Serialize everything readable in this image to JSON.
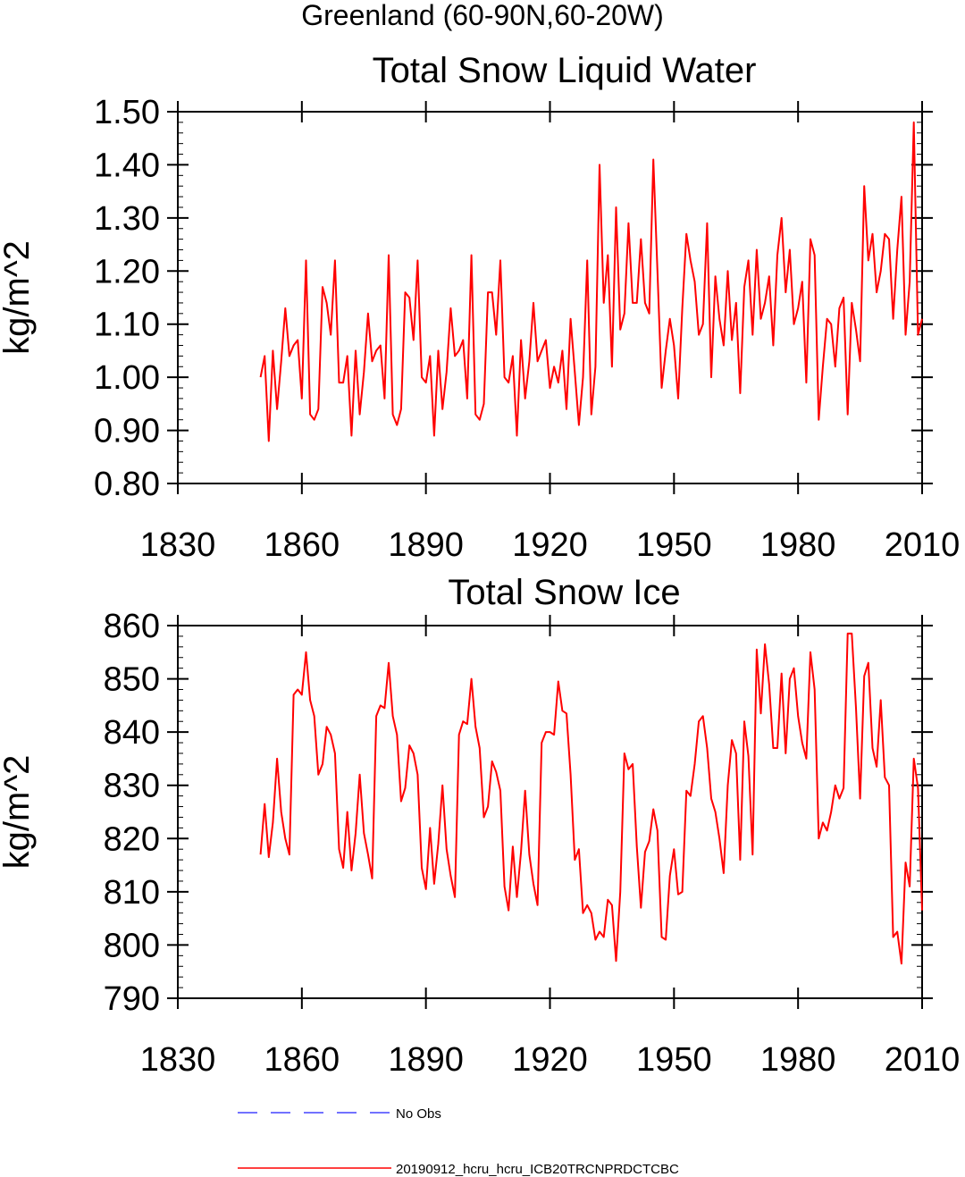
{
  "page_title": "Greenland (60-90N,60-20W)",
  "colors": {
    "model": "#ff0000",
    "obs": "#4444ff",
    "axis": "#000000"
  },
  "legend": {
    "items": [
      {
        "label": "No Obs",
        "style": "dashed",
        "color": "#4444ff"
      },
      {
        "label": "20190912_hcru_hcru_ICB20TRCNPRDCTCBC",
        "style": "solid",
        "color": "#ff0000"
      }
    ]
  },
  "chart_data": [
    {
      "type": "line",
      "title": "Total Snow Liquid Water",
      "xlabel": "",
      "ylabel": "kg/m^2",
      "xlim": [
        1830,
        2010
      ],
      "ylim": [
        0.8,
        1.5
      ],
      "xticks": [
        1830,
        1860,
        1890,
        1920,
        1950,
        1980,
        2010
      ],
      "xtick_labels": [
        "1830",
        "1860",
        "1890",
        "1920",
        "1950",
        "1980",
        "2010"
      ],
      "yticks": [
        0.8,
        0.9,
        1.0,
        1.1,
        1.2,
        1.3,
        1.4,
        1.5
      ],
      "ytick_labels": [
        "0.80",
        "0.90",
        "1.00",
        "1.10",
        "1.20",
        "1.30",
        "1.40",
        "1.50"
      ],
      "series": [
        {
          "name": "20190912_hcru_hcru_ICB20TRCNPRDCTCBC",
          "x_start": 1850,
          "x_step": 1,
          "values": [
            1.0,
            1.04,
            0.88,
            1.05,
            0.94,
            1.03,
            1.13,
            1.04,
            1.06,
            1.07,
            0.96,
            1.22,
            0.93,
            0.92,
            0.94,
            1.17,
            1.14,
            1.08,
            1.22,
            0.99,
            0.99,
            1.04,
            0.89,
            1.05,
            0.93,
            1.01,
            1.12,
            1.03,
            1.05,
            1.06,
            0.96,
            1.23,
            0.93,
            0.91,
            0.94,
            1.16,
            1.15,
            1.07,
            1.22,
            1.0,
            0.99,
            1.04,
            0.89,
            1.05,
            0.94,
            1.01,
            1.13,
            1.04,
            1.05,
            1.07,
            0.96,
            1.23,
            0.93,
            0.92,
            0.95,
            1.16,
            1.16,
            1.08,
            1.22,
            1.0,
            0.99,
            1.04,
            0.89,
            1.07,
            0.96,
            1.03,
            1.14,
            1.03,
            1.05,
            1.07,
            0.98,
            1.02,
            0.99,
            1.05,
            0.94,
            1.11,
            1.01,
            0.91,
            1.0,
            1.22,
            0.93,
            1.02,
            1.4,
            1.14,
            1.23,
            1.02,
            1.32,
            1.09,
            1.12,
            1.29,
            1.14,
            1.14,
            1.26,
            1.14,
            1.12,
            1.41,
            1.2,
            0.98,
            1.05,
            1.11,
            1.06,
            0.96,
            1.13,
            1.27,
            1.22,
            1.18,
            1.08,
            1.1,
            1.29,
            1.0,
            1.19,
            1.11,
            1.06,
            1.2,
            1.07,
            1.14,
            0.97,
            1.17,
            1.22,
            1.08,
            1.24,
            1.11,
            1.14,
            1.19,
            1.06,
            1.23,
            1.3,
            1.16,
            1.24,
            1.1,
            1.13,
            1.18,
            0.99,
            1.26,
            1.23,
            0.92,
            1.02,
            1.11,
            1.1,
            1.02,
            1.13,
            1.15,
            0.93,
            1.14,
            1.09,
            1.03,
            1.36,
            1.22,
            1.27,
            1.16,
            1.2,
            1.27,
            1.26,
            1.11,
            1.24,
            1.34,
            1.08,
            1.18,
            1.48,
            1.08,
            1.11
          ]
        }
      ]
    },
    {
      "type": "line",
      "title": "Total Snow Ice",
      "xlabel": "",
      "ylabel": "kg/m^2",
      "xlim": [
        1830,
        2010
      ],
      "ylim": [
        790,
        860
      ],
      "xticks": [
        1830,
        1860,
        1890,
        1920,
        1950,
        1980,
        2010
      ],
      "xtick_labels": [
        "1830",
        "1860",
        "1890",
        "1920",
        "1950",
        "1980",
        "2010"
      ],
      "yticks": [
        790,
        800,
        810,
        820,
        830,
        840,
        850,
        860
      ],
      "ytick_labels": [
        "790",
        "800",
        "810",
        "820",
        "830",
        "840",
        "850",
        "860"
      ],
      "series": [
        {
          "name": "20190912_hcru_hcru_ICB20TRCNPRDCTCBC",
          "x_start": 1850,
          "x_step": 1,
          "values": [
            817,
            826.5,
            816.5,
            823,
            835,
            825,
            820,
            817,
            847,
            848,
            847,
            855,
            846,
            843,
            832,
            834,
            841,
            839.5,
            836,
            818,
            814.5,
            825,
            814,
            821,
            832,
            821,
            817,
            812.5,
            843,
            845,
            844.5,
            853,
            843,
            839.5,
            827,
            829.5,
            837.5,
            836,
            832,
            814.5,
            810.5,
            822,
            811.5,
            819,
            830,
            818,
            813,
            809,
            839.5,
            842,
            841.5,
            850,
            841,
            837,
            824,
            826,
            834.5,
            832.5,
            829,
            811,
            806.5,
            818.5,
            809,
            817.5,
            829,
            817,
            811.5,
            807.5,
            838,
            840,
            840,
            839.5,
            849.5,
            844,
            843.5,
            832,
            816,
            818,
            806,
            807.5,
            806,
            801,
            802.5,
            801.5,
            808.5,
            807.5,
            797,
            810,
            836,
            833,
            834,
            818.5,
            807,
            817.5,
            819.5,
            825.5,
            821.5,
            801.5,
            801,
            813,
            818,
            809.5,
            810,
            829,
            828,
            834,
            842,
            843,
            837,
            827.5,
            825,
            820,
            813.5,
            830,
            838.5,
            836,
            816,
            842,
            835.5,
            817,
            855.5,
            843.5,
            856.5,
            849,
            837,
            837,
            851,
            836,
            850,
            852,
            843,
            838,
            835,
            855,
            848,
            820,
            823,
            821.5,
            825,
            830,
            827.5,
            829.5,
            858.5,
            858.5,
            844.5,
            827.5,
            850.5,
            853,
            837,
            833.5,
            846,
            831.5,
            830,
            801.5,
            802.5,
            796.5,
            815.5,
            811,
            835,
            829.5,
            806.5
          ]
        }
      ]
    }
  ]
}
